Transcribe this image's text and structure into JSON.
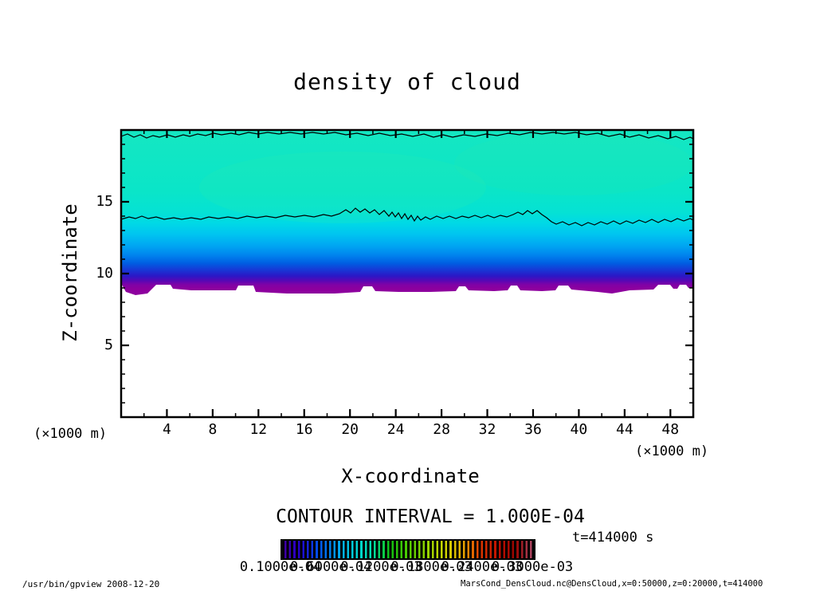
{
  "chart_data": {
    "type": "heatmap",
    "title": "density of cloud",
    "xlabel": "X-coordinate",
    "ylabel": "Z-coordinate",
    "x_unit_label": "(×1000 m)",
    "y_unit_label": "(×1000 m)",
    "xlim": [
      0,
      50
    ],
    "ylim": [
      0,
      20
    ],
    "x_ticks_major": [
      4,
      8,
      12,
      16,
      20,
      24,
      28,
      32,
      36,
      40,
      44,
      48
    ],
    "x_tick_minor_step": 2,
    "y_ticks_major": [
      5,
      10,
      15
    ],
    "y_tick_minor_step": 1,
    "grid": false,
    "contour_interval_label": "CONTOUR INTERVAL = 1.000E-04",
    "contour_interval": "1.000E-04",
    "time_label": "t=414000 s",
    "colorbar": {
      "labels": [
        "0.1000e-04",
        "0.6000e-04",
        "0.1200e-03",
        "0.1800e-03",
        "0.2400e-03",
        "0.3000e-03"
      ],
      "gradient_colors": [
        "#4400a0",
        "#2200cc",
        "#0050f0",
        "#009cf0",
        "#00d2dc",
        "#00e0ac",
        "#10c010",
        "#50cc00",
        "#90d400",
        "#ccd800",
        "#e8b000",
        "#e03800",
        "#c01000",
        "#980400",
        "#b05070"
      ]
    },
    "field_profile": [
      {
        "z": 20.0,
        "color": "#15e7c2",
        "note": "uniform teal-green upper layer"
      },
      {
        "z": 14.0,
        "color": "#05e2d4",
        "note": "wavy black contour crosses near z=13.8"
      },
      {
        "z": 12.0,
        "color": "#00c4f0"
      },
      {
        "z": 11.0,
        "color": "#0084ee"
      },
      {
        "z": 10.0,
        "color": "#163ad6",
        "note": "deep blue band"
      },
      {
        "z": 9.4,
        "color": "#8002a6",
        "note": "purple cloud-base band with jagged bottom"
      },
      {
        "z": 9.0,
        "color": "#ffffff",
        "note": "white (no cloud) below about z=9"
      }
    ],
    "contour_lines": [
      {
        "z_approx": 19.7,
        "description": "wavy contour hugging top frame"
      },
      {
        "z_approx": 13.8,
        "description": "wavy contour across full width, more jagged on right half"
      }
    ]
  },
  "footer": {
    "left": "/usr/bin/gpview  2008-12-20",
    "right": "MarsCond_DensCloud.nc@DensCloud,x=0:50000,z=0:20000,t=414000"
  }
}
